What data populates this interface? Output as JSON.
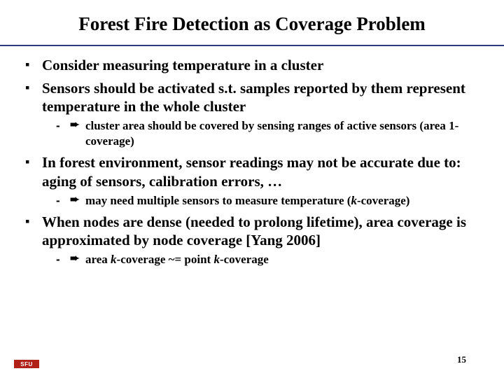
{
  "colors": {
    "rule": "#2a3a7a",
    "logo_bg": "#b02018"
  },
  "title": "Forest Fire Detection as Coverage Problem",
  "bullets": [
    {
      "text": "Consider measuring temperature in a cluster"
    },
    {
      "text": "Sensors should be activated s.t. samples reported by them represent temperature in the whole cluster",
      "sub": [
        {
          "text": "cluster area should be covered by sensing ranges of active sensors (area 1-coverage)"
        }
      ]
    },
    {
      "text": "In forest environment, sensor readings may not be accurate due to: aging of sensors, calibration errors, …",
      "sub": [
        {
          "html": "may need multiple sensors to measure temperature (<span class=\"italic\">k</span>-coverage)"
        }
      ]
    },
    {
      "text": "When nodes are dense (needed to prolong lifetime), area coverage is approximated by node coverage [Yang 2006]",
      "sub": [
        {
          "html": "area <span class=\"italic\">k</span>-coverage ~= point <span class=\"italic\">k</span>-coverage"
        }
      ]
    }
  ],
  "page_number": "15",
  "logo_text": "SFU"
}
